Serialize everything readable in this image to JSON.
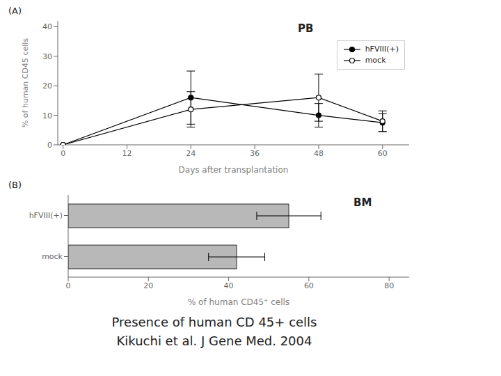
{
  "title": "Presence of human CD 45+ cells",
  "subtitle": "Kikuchi et al. J Gene Med. 2004",
  "chart_data": [
    {
      "type": "line",
      "title": "PB",
      "annotations": [
        "(A)"
      ],
      "xlabel": "Days after transplantation",
      "ylabel": "% of human CD45  cells",
      "x": [
        0,
        24,
        48,
        60
      ],
      "series": [
        {
          "name": "hFVIII(+)",
          "color": "#000000",
          "marker": "filled_circle",
          "values": [
            0,
            16,
            10,
            7.5
          ],
          "errors": [
            0,
            9,
            4,
            3
          ]
        },
        {
          "name": "mock",
          "color": "#000000",
          "marker": "open_circle",
          "values": [
            0,
            12,
            16,
            8
          ],
          "errors": [
            0,
            6,
            8,
            3.5
          ]
        }
      ],
      "xlim": [
        -1,
        65
      ],
      "xticks": [
        0,
        12,
        24,
        36,
        48,
        60
      ],
      "ylim": [
        0,
        42
      ],
      "yticks": [
        0,
        10,
        20,
        30,
        40
      ],
      "legend": "upper right",
      "grid": false
    },
    {
      "type": "bar",
      "orientation": "horizontal",
      "title": "BM",
      "annotations": [
        "(B)"
      ],
      "xlabel": "% of human CD45⁺ cells",
      "categories": [
        "hFVIII(+)",
        "mock"
      ],
      "values": [
        55,
        42
      ],
      "errors": [
        8,
        7
      ],
      "color": "#b8b8b8",
      "xlim": [
        0,
        85
      ],
      "xticks": [
        0,
        20,
        40,
        60,
        80
      ],
      "grid": false
    }
  ]
}
